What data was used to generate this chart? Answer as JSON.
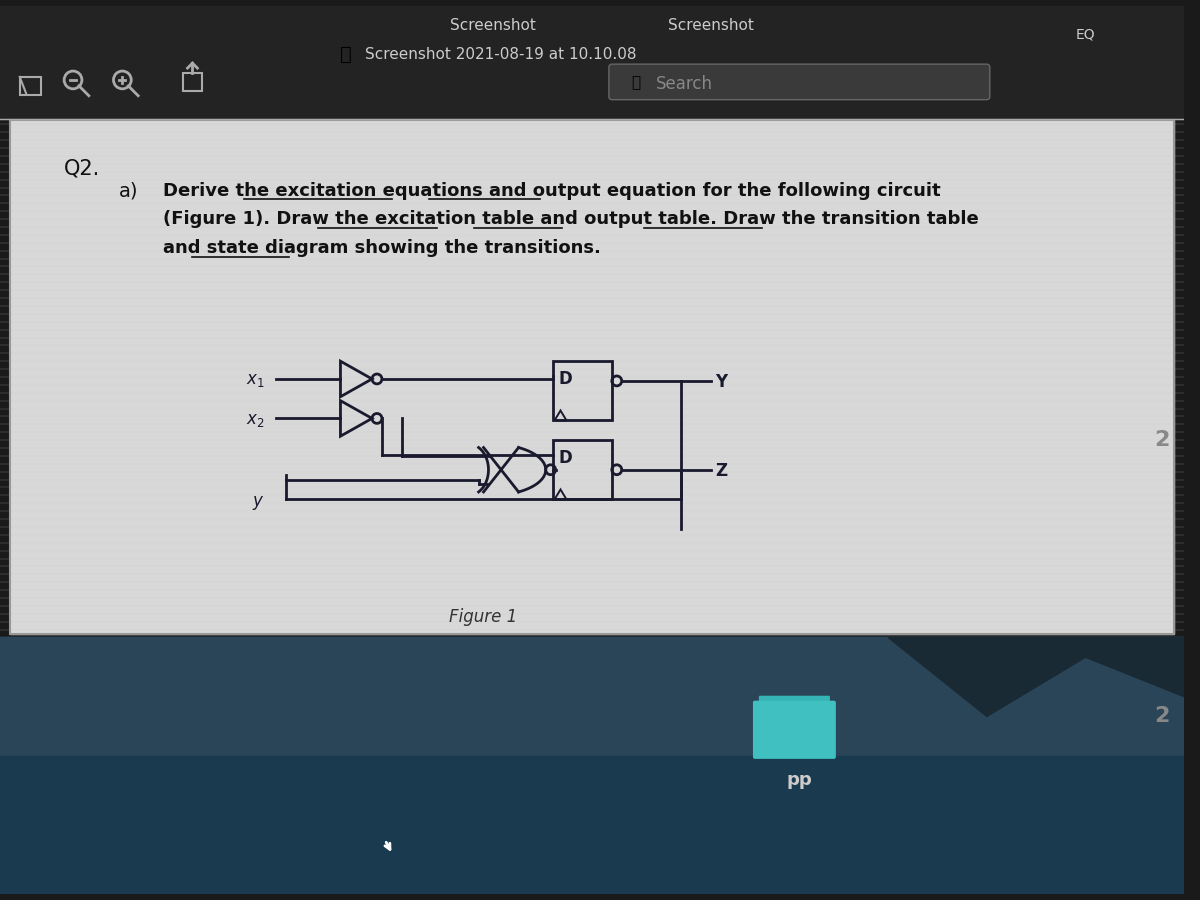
{
  "bg_top_color": "#1a1a1a",
  "bg_bottom_color": "#2a4a6a",
  "content_bg": "#e8e8e8",
  "content_border": "#888888",
  "title_bar_color": "#2d2d2d",
  "title_text": "Screenshot",
  "subtitle_text": "Screenshot 2021-08-19 at 10.10.08",
  "search_placeholder": "Search",
  "question_label": "Q2.",
  "part_label": "a)",
  "question_text_line1": "Derive the excitation equations and output equation for the following circuit",
  "question_text_line2": "(Figure 1). Draw the excitation table and output table. Draw the transition table",
  "question_text_line3": "and state diagram showing the transitions.",
  "figure_label": "Figure 1",
  "pp_label": "pp",
  "line_color": "#1a1a2e",
  "circuit_color": "#1a1a2e",
  "folder_color": "#40c8c8",
  "text_color": "#111111",
  "underline_terms": [
    "excitation equations",
    "output equation",
    "excitation table",
    "output table",
    "transition table",
    "state diagram"
  ]
}
